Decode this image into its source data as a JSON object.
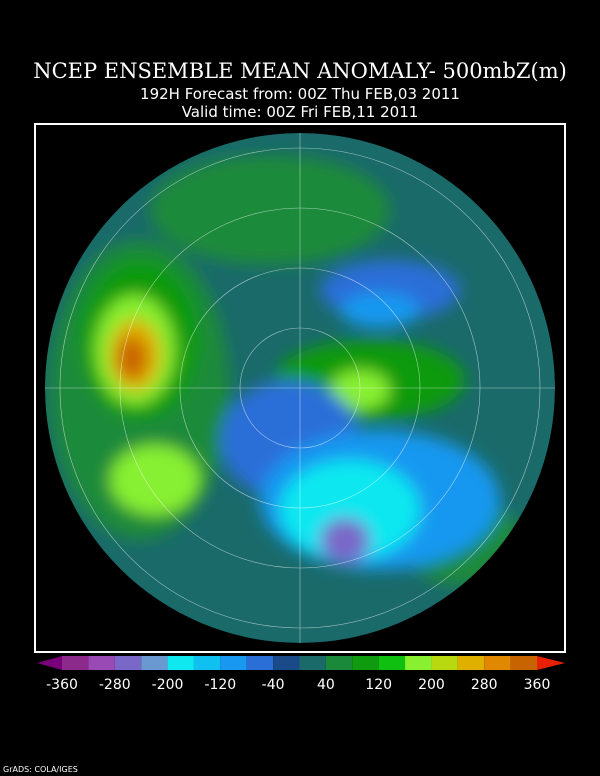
{
  "header": {
    "title": "NCEP ENSEMBLE MEAN ANOMALY- 500mbZ(m)",
    "forecast_line": "192H Forecast from: 00Z Thu FEB,03 2011",
    "valid_line": "Valid time: 00Z Fri FEB,11 2011"
  },
  "colorbar": {
    "labels": [
      -360,
      -280,
      -200,
      -120,
      -40,
      40,
      120,
      200,
      280,
      360
    ],
    "colors": [
      "#8c2a8c",
      "#9a4ab4",
      "#7a68c8",
      "#6a98d0",
      "#10e8f0",
      "#10c0f0",
      "#1898f0",
      "#2a6ed8",
      "#1a4a88",
      "#1a6a6a",
      "#1a8a3a",
      "#109a10",
      "#10c010",
      "#88f030",
      "#b8d810",
      "#e0b000",
      "#e08800",
      "#c86400"
    ],
    "low_color": "#7a007a",
    "high_color": "#e82000"
  },
  "footer": "GrADS: COLA/IGES"
}
